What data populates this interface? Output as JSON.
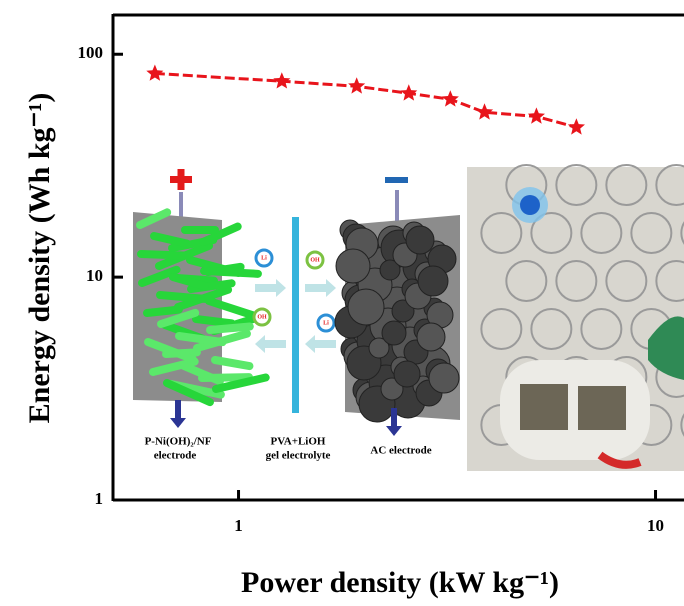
{
  "chart_data": {
    "type": "line",
    "x_label": "Power density (kW kg⁻¹)",
    "y_label": "Energy density (Wh kg⁻¹)",
    "x": [
      0.63,
      1.27,
      1.92,
      2.56,
      3.22,
      3.89,
      5.18,
      6.46
    ],
    "values": [
      82,
      75.7,
      71.8,
      66.8,
      62.8,
      54.9,
      52.6,
      47
    ],
    "color": "#e8141b",
    "x_log": true,
    "y_log": true,
    "xlim": [
      0.5,
      11.6
    ],
    "ylim": [
      1,
      150
    ],
    "xticks": [
      1,
      10
    ],
    "yticks": [
      1,
      10,
      100
    ],
    "annotations": [
      "P-Ni(OH)₂/NF",
      "electrode",
      "PVA+LiOH",
      "gel electrolyte",
      "AC electrode",
      "Li",
      "OH",
      "OH",
      "Li"
    ]
  }
}
